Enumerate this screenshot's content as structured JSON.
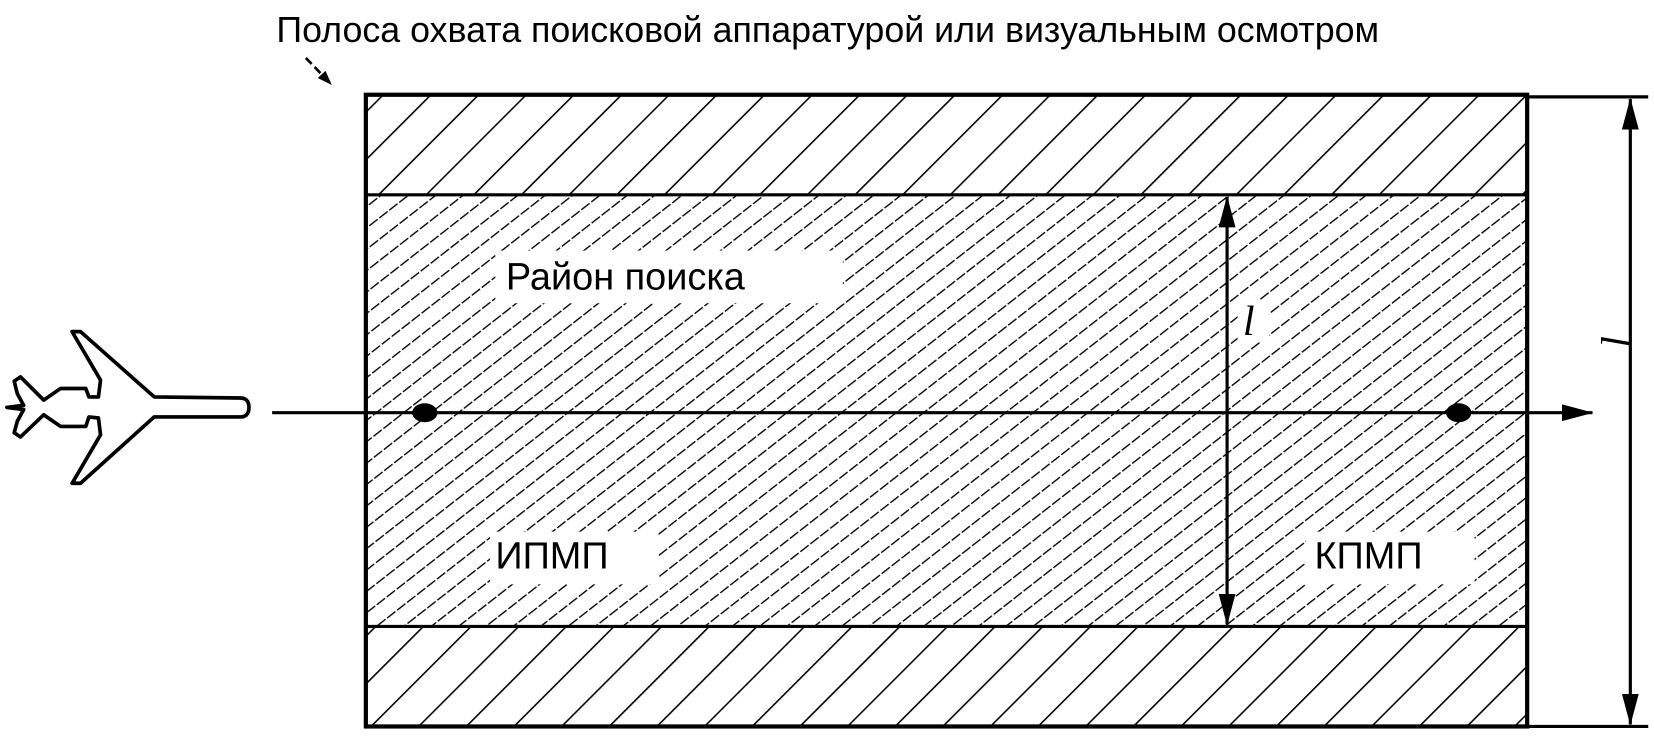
{
  "title": "Полоса охвата поисковой аппаратурой или визуальным осмотром",
  "labels": {
    "search_area": "Район поиска",
    "start_point": "ИПМП",
    "end_point": "КПМП",
    "inner_dimension": "l",
    "outer_dimension": "l"
  },
  "icons": [
    "airplane-icon",
    "arrow-icon"
  ],
  "colors": {
    "ink": "#000000",
    "background": "#ffffff"
  }
}
